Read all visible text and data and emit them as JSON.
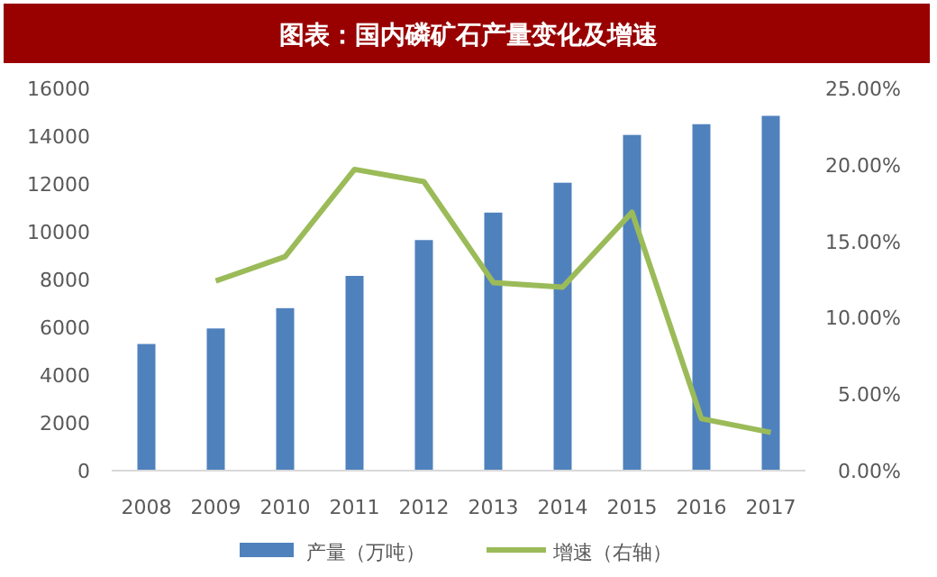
{
  "chart_data": {
    "type": "bar",
    "title": "图表：国内磷矿石产量变化及增速",
    "categories": [
      "2008",
      "2009",
      "2010",
      "2011",
      "2012",
      "2013",
      "2014",
      "2015",
      "2016",
      "2017"
    ],
    "series": [
      {
        "name": "产量（万吨）",
        "color": "#4f81bd",
        "values": [
          5300,
          5950,
          6800,
          8150,
          9650,
          10800,
          12050,
          14050,
          14500,
          14850
        ]
      },
      {
        "name": "增速（右轴）",
        "type": "line",
        "axis": "y2",
        "color": "#9bbb59",
        "values": [
          null,
          12.4,
          14.0,
          19.7,
          18.9,
          12.3,
          12.0,
          16.9,
          3.4,
          2.5
        ]
      }
    ],
    "ylim": [
      0,
      16000
    ],
    "yticks": [
      0,
      2000,
      4000,
      6000,
      8000,
      10000,
      12000,
      14000,
      16000
    ],
    "y2lim": [
      0,
      25
    ],
    "y2ticks": [
      {
        "value": 0,
        "label": "0.00%"
      },
      {
        "value": 5,
        "label": "5.00%"
      },
      {
        "value": 10,
        "label": "10.00%"
      },
      {
        "value": 15,
        "label": "15.00%"
      },
      {
        "value": 20,
        "label": "20.00%"
      },
      {
        "value": 25,
        "label": "25.00%"
      }
    ],
    "legend": "bottom",
    "grid": false
  }
}
